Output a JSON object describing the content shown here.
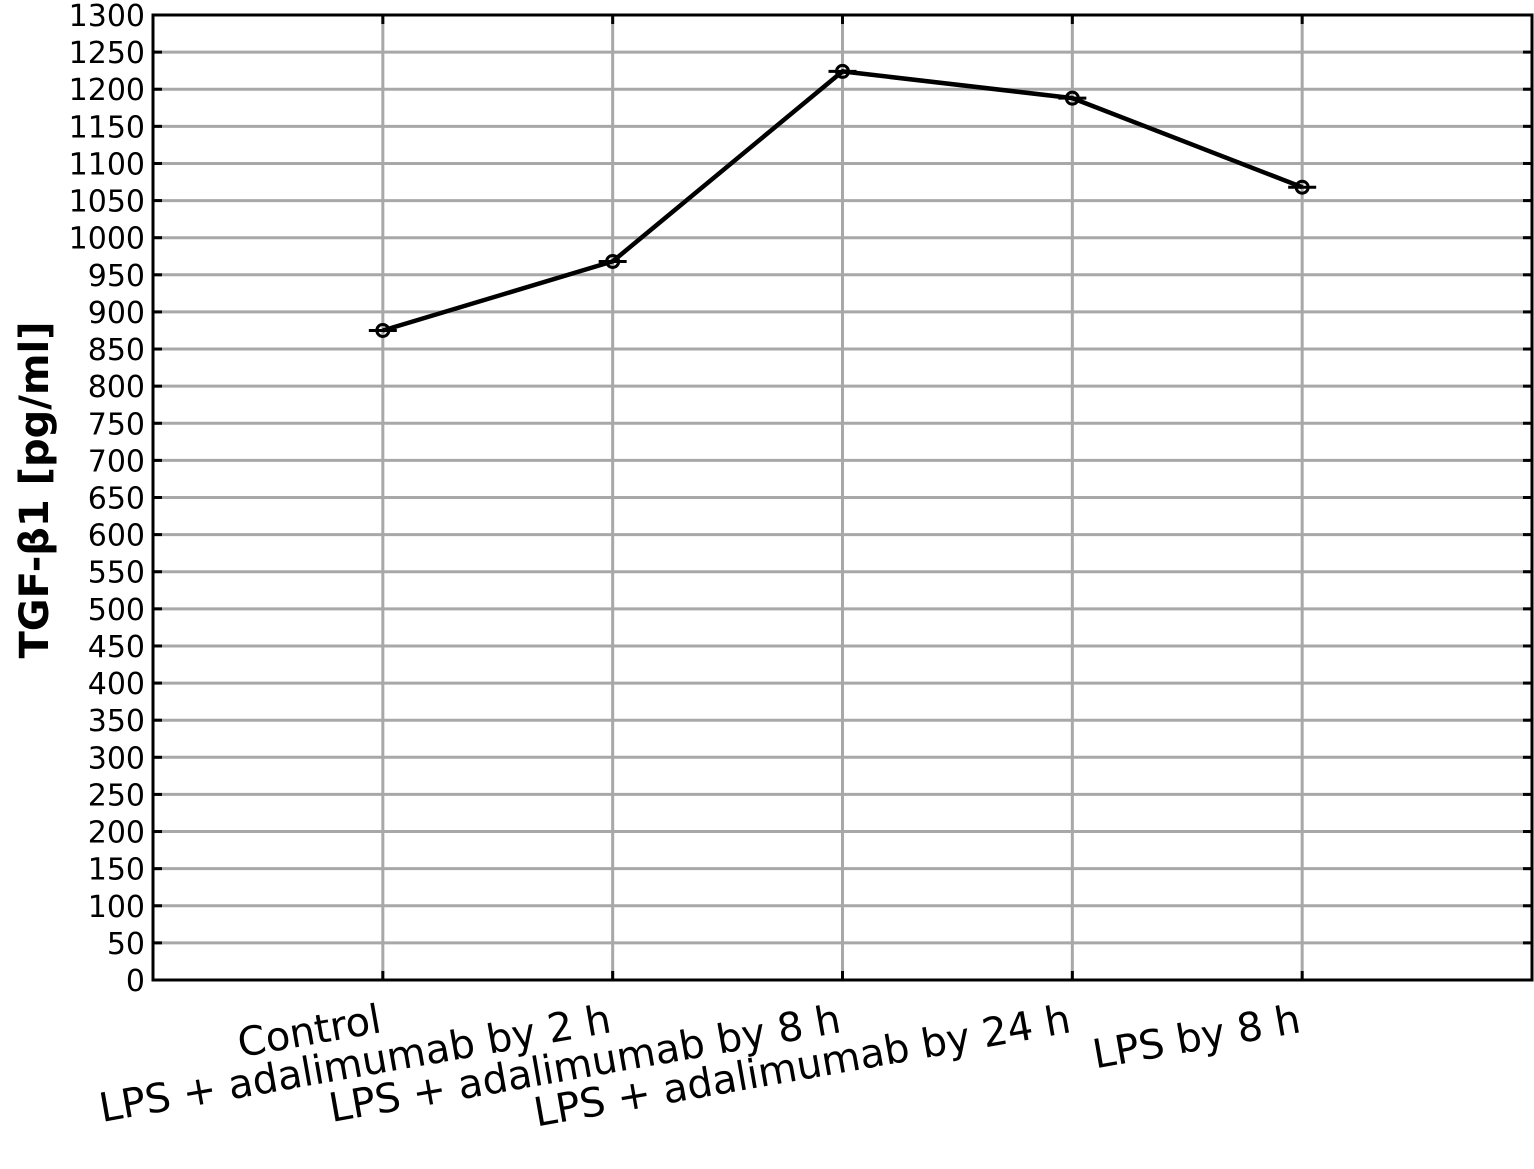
{
  "chart_data": {
    "type": "line",
    "categories": [
      "Control",
      "LPS + adalimumab by 2 h",
      "LPS + adalimumab by 8 h",
      "LPS + adalimumab by 24 h",
      "LPS by 8 h"
    ],
    "values": [
      875,
      968,
      1224,
      1188,
      1068
    ],
    "ylabel": "TGF-β1 [pg/ml]",
    "xlabel": "",
    "ylim": [
      0,
      1300
    ],
    "ytick_step": 50,
    "grid": true,
    "marker": "open-circle",
    "line_color": "#000000",
    "grid_color": "#a8a8a8"
  }
}
